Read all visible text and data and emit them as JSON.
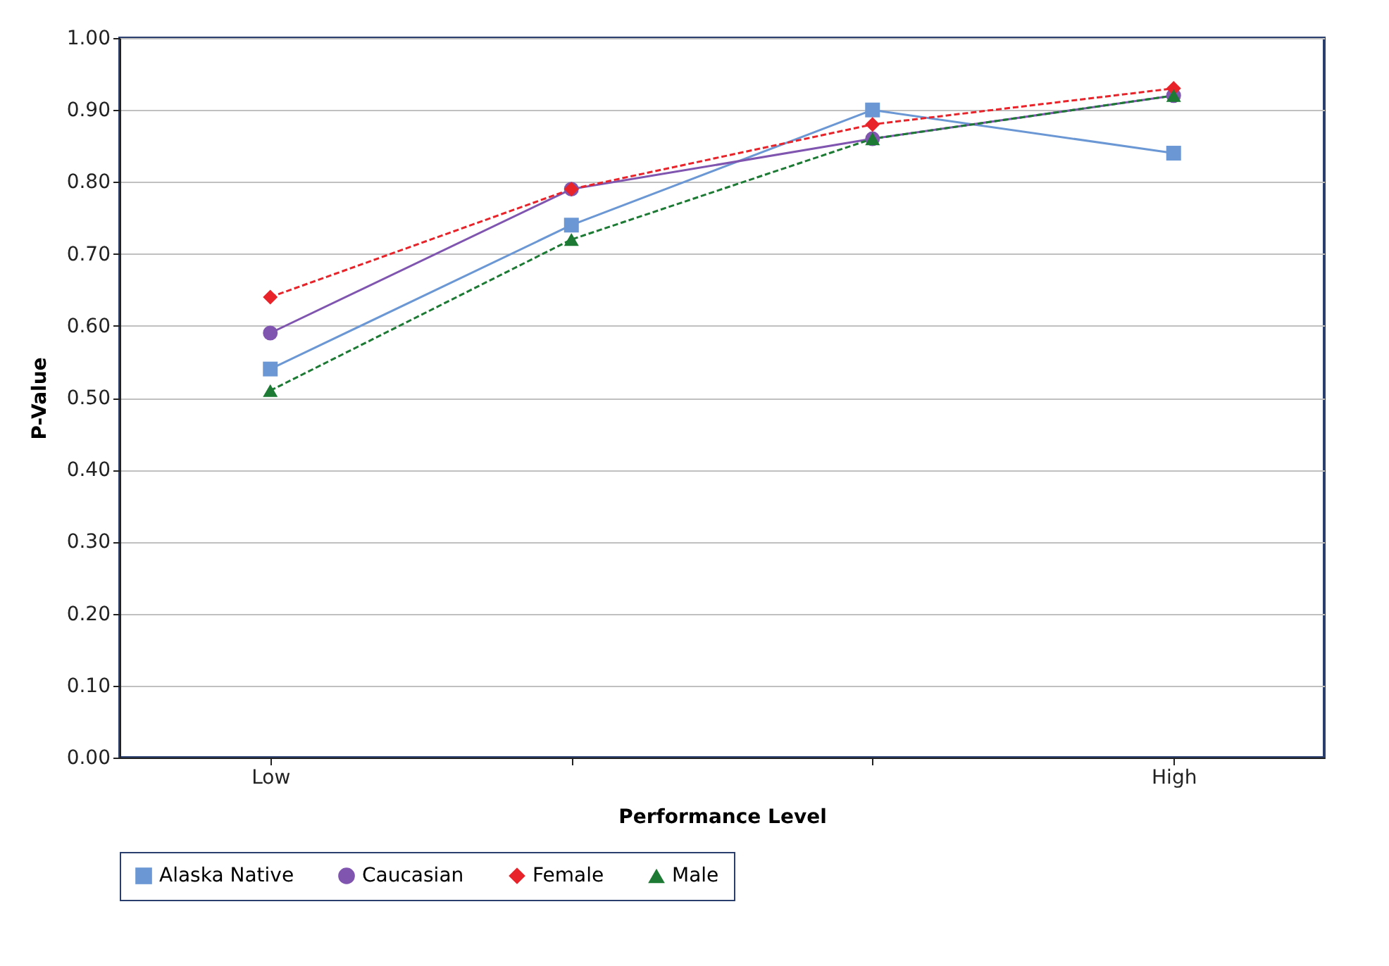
{
  "chart_data": {
    "type": "line",
    "xlabel": "Performance Level",
    "ylabel": "P-Value",
    "categories": [
      "Low",
      null,
      null,
      "High"
    ],
    "series": [
      {
        "name": "Alaska Native",
        "color": "#6b98d4",
        "marker": "square",
        "line_style": "solid",
        "values": [
          0.54,
          0.74,
          0.9,
          0.84
        ]
      },
      {
        "name": "Caucasian",
        "color": "#7f55b0",
        "marker": "circle",
        "line_style": "solid",
        "values": [
          0.59,
          0.79,
          0.86,
          0.92
        ]
      },
      {
        "name": "Female",
        "color": "#e8242a",
        "marker": "diamond",
        "line_style": "dashed",
        "values": [
          0.64,
          0.79,
          0.88,
          0.93
        ]
      },
      {
        "name": "Male",
        "color": "#1d7a34",
        "marker": "triangle",
        "line_style": "dashed",
        "values": [
          0.51,
          0.72,
          0.86,
          0.92
        ]
      }
    ],
    "ylim": [
      0,
      1
    ],
    "yticks": [
      {
        "value": 0,
        "label": "0.00"
      },
      {
        "value": 0.1,
        "label": "0.10"
      },
      {
        "value": 0.2,
        "label": "0.20"
      },
      {
        "value": 0.3,
        "label": "0.30"
      },
      {
        "value": 0.4,
        "label": "0.40"
      },
      {
        "value": 0.5,
        "label": "0.50"
      },
      {
        "value": 0.6,
        "label": "0.60"
      },
      {
        "value": 0.7,
        "label": "0.70"
      },
      {
        "value": 0.8,
        "label": "0.80"
      },
      {
        "value": 0.9,
        "label": "0.90"
      },
      {
        "value": 1,
        "label": "1.00"
      }
    ],
    "grid": "y",
    "legend": "bottom"
  }
}
